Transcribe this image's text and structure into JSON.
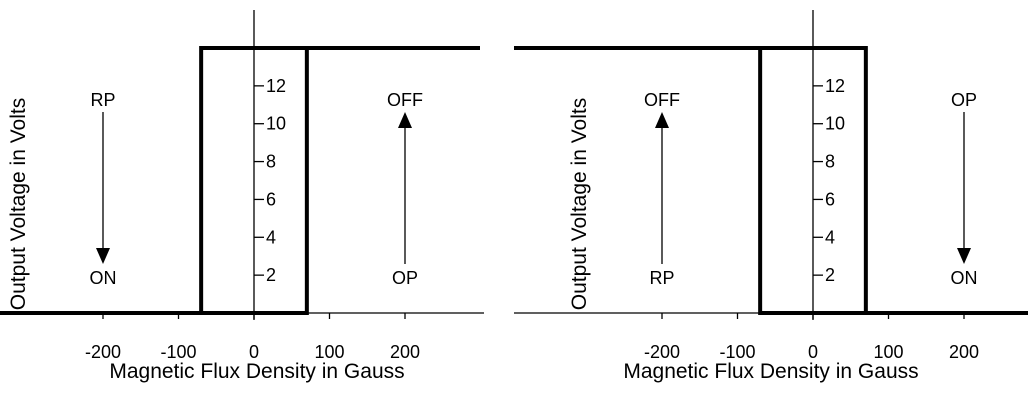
{
  "chart_data": [
    {
      "type": "line",
      "ylabel": "Output Voltage in Volts",
      "xlabel": "Magnetic Flux Density in Gauss",
      "xlim": [
        -300,
        300
      ],
      "ylim": [
        0,
        14
      ],
      "x_ticks": [
        "-200",
        "-100",
        "0",
        "100",
        "200"
      ],
      "x_tick_values": [
        -200,
        -100,
        0,
        100,
        200
      ],
      "y_ticks": [
        "2",
        "4",
        "6",
        "8",
        "10",
        "12"
      ],
      "y_tick_values": [
        2,
        4,
        6,
        8,
        10,
        12
      ],
      "low_level": 0,
      "high_level": 14,
      "series": [
        {
          "x": [
            -300,
            -70,
            -70,
            300
          ],
          "y": [
            0,
            0,
            14,
            14
          ]
        },
        {
          "x": [
            -300,
            70,
            70,
            300
          ],
          "y": [
            0,
            0,
            14,
            14
          ]
        }
      ],
      "annotations": [
        {
          "top_label": "RP",
          "bottom_label": "ON",
          "x": -200,
          "direction": "down",
          "y_top": 11.5,
          "y_bottom": 2.3
        },
        {
          "top_label": "OFF",
          "bottom_label": "OP",
          "x": 200,
          "direction": "up",
          "y_top": 11.5,
          "y_bottom": 2.3
        }
      ]
    },
    {
      "type": "line",
      "ylabel": "Output Voltage in Volts",
      "xlabel": "Magnetic Flux Density in Gauss",
      "xlim": [
        -300,
        300
      ],
      "ylim": [
        0,
        14
      ],
      "x_ticks": [
        "-200",
        "-100",
        "0",
        "100",
        "200"
      ],
      "x_tick_values": [
        -200,
        -100,
        0,
        100,
        200
      ],
      "y_ticks": [
        "2",
        "4",
        "6",
        "8",
        "10",
        "12"
      ],
      "y_tick_values": [
        2,
        4,
        6,
        8,
        10,
        12
      ],
      "low_level": 0,
      "high_level": 14,
      "series": [
        {
          "x": [
            -300,
            -70,
            -70,
            300
          ],
          "y": [
            14,
            14,
            0,
            0
          ]
        },
        {
          "x": [
            -300,
            70,
            70,
            300
          ],
          "y": [
            14,
            14,
            0,
            0
          ]
        }
      ],
      "annotations": [
        {
          "top_label": "OFF",
          "bottom_label": "RP",
          "x": -200,
          "direction": "up",
          "y_top": 11.5,
          "y_bottom": 2.3
        },
        {
          "top_label": "OP",
          "bottom_label": "ON",
          "x": 200,
          "direction": "down",
          "y_top": 11.5,
          "y_bottom": 2.3
        }
      ]
    }
  ]
}
